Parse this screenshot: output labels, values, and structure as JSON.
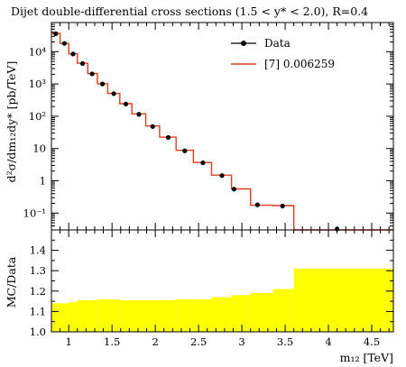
{
  "chart_data": [
    {
      "type": "line",
      "panel": "main",
      "title": "Dijet double-differential cross sections (1.5 < y* < 2.0), R=0.4",
      "ylabel": "d²σ/dm₁₂dy* [pb/TeV]",
      "yscale": "log",
      "ylim": [
        0.03,
        80000
      ],
      "xlim": [
        0.8,
        4.75
      ],
      "yticks": [
        {
          "value": 0.1,
          "label": "10⁻¹"
        },
        {
          "value": 1,
          "label": "1"
        },
        {
          "value": 10,
          "label": "10"
        },
        {
          "value": 100,
          "label": "10²"
        },
        {
          "value": 1000,
          "label": "10³"
        },
        {
          "value": 10000,
          "label": "10⁴"
        }
      ],
      "legend": {
        "placement": "top-right"
      },
      "series": [
        {
          "name": "Data",
          "style": "points",
          "color": "#000000",
          "x": [
            0.85,
            0.95,
            1.05,
            1.16,
            1.27,
            1.39,
            1.52,
            1.66,
            1.81,
            1.97,
            2.15,
            2.34,
            2.55,
            2.77,
            2.91,
            3.18,
            3.47,
            4.1
          ],
          "values": [
            36000,
            18000,
            8500,
            4300,
            2050,
            1000,
            500,
            240,
            115,
            48,
            22,
            8.5,
            3.6,
            1.45,
            0.55,
            0.18,
            0.165,
            0.005
          ]
        },
        {
          "name": "[7] 0.006259",
          "style": "step",
          "color": "#e23c1c",
          "edges": [
            0.8,
            0.9,
            1.0,
            1.1,
            1.22,
            1.33,
            1.45,
            1.59,
            1.73,
            1.89,
            2.05,
            2.24,
            2.44,
            2.65,
            2.88,
            3.1,
            3.36,
            3.6,
            4.75
          ],
          "values": [
            37000,
            18000,
            8600,
            4400,
            2100,
            1020,
            510,
            245,
            118,
            50,
            22.5,
            8.8,
            3.7,
            1.5,
            0.56,
            0.175,
            0.17,
            0.03
          ]
        }
      ]
    },
    {
      "type": "area",
      "panel": "ratio",
      "ylabel": "MC/Data",
      "xlabel": "m₁₂ [TeV]",
      "xlim": [
        0.8,
        4.75
      ],
      "ylim": [
        1.0,
        1.5
      ],
      "yticks": [
        "1.0",
        "1.1",
        "1.2",
        "1.3",
        "1.4"
      ],
      "xticks": [
        "1",
        "1.5",
        "2",
        "2.5",
        "3",
        "3.5",
        "4",
        "4.5"
      ],
      "band_color": "#ffff00",
      "band": {
        "edges": [
          0.8,
          1.0,
          1.1,
          1.33,
          1.59,
          1.89,
          2.24,
          2.65,
          2.88,
          3.1,
          3.36,
          3.6,
          4.75
        ],
        "lower": [
          1.0,
          1.0,
          1.0,
          1.0,
          1.0,
          1.0,
          1.0,
          1.0,
          1.0,
          1.0,
          1.0,
          1.0
        ],
        "upper": [
          1.14,
          1.145,
          1.155,
          1.16,
          1.155,
          1.155,
          1.16,
          1.17,
          1.18,
          1.19,
          1.21,
          1.31
        ]
      }
    }
  ]
}
